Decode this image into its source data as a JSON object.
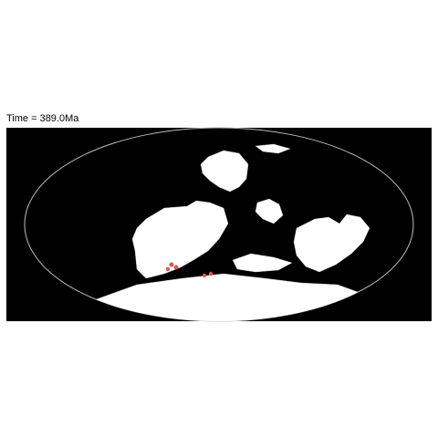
{
  "title": "Time = 389.0Ma"
}
